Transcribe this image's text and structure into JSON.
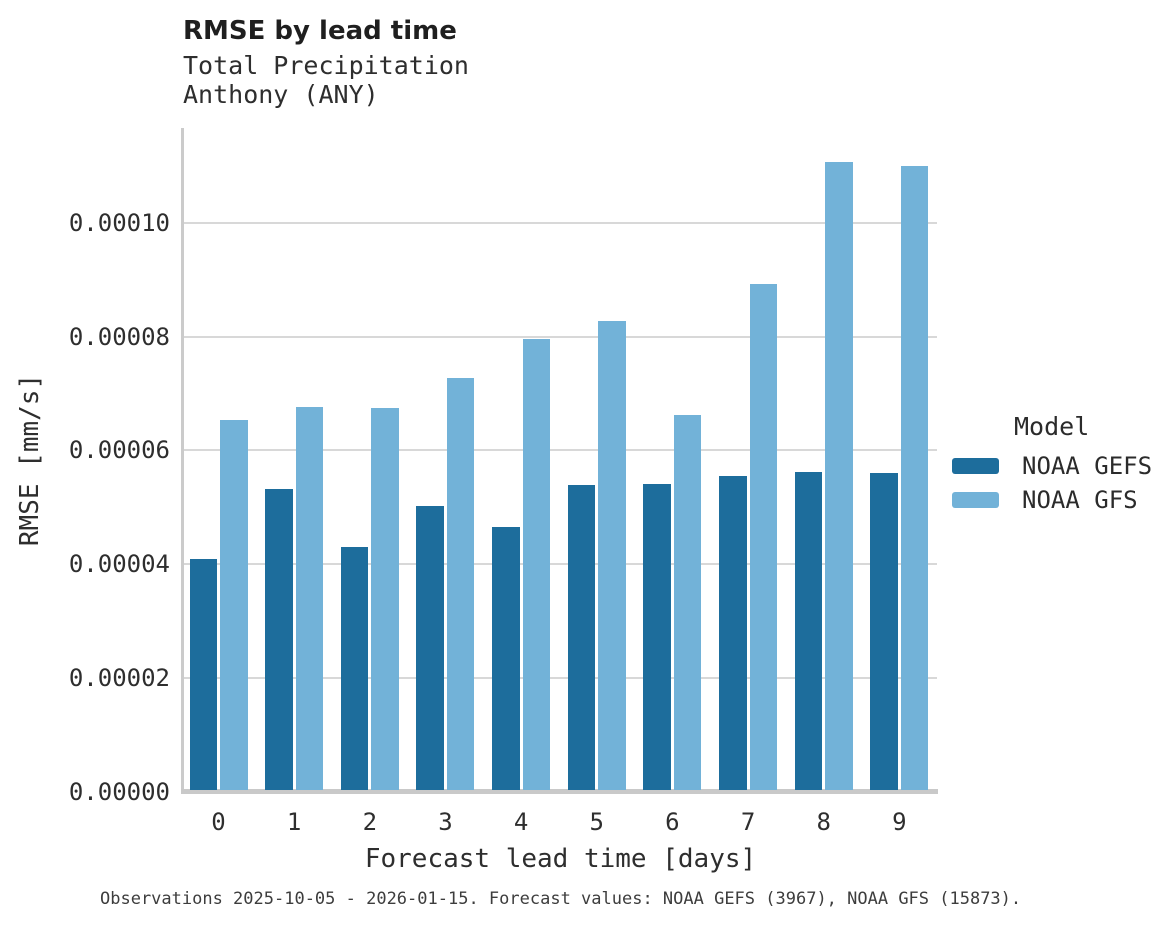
{
  "chart_data": {
    "type": "bar",
    "title": "RMSE by lead time",
    "subtitle": [
      "Total Precipitation",
      "Anthony (ANY)"
    ],
    "categories": [
      "0",
      "1",
      "2",
      "3",
      "4",
      "5",
      "6",
      "7",
      "8",
      "9"
    ],
    "series": [
      {
        "name": "NOAA GEFS",
        "color": "#1d6d9c",
        "values": [
          4.1e-05,
          5.33e-05,
          4.31e-05,
          5.02e-05,
          4.65e-05,
          5.4e-05,
          5.41e-05,
          5.56e-05,
          5.63e-05,
          5.61e-05
        ]
      },
      {
        "name": "NOAA GFS",
        "color": "#72b2d8",
        "values": [
          6.53e-05,
          6.77e-05,
          6.75e-05,
          7.28e-05,
          7.95e-05,
          8.28e-05,
          6.62e-05,
          8.93e-05,
          0.0001106,
          0.00011
        ]
      }
    ],
    "xlabel": "Forecast lead time [days]",
    "ylabel": "RMSE [mm/s]",
    "ylim": [
      0,
      0.0001163
    ],
    "yticks": [
      0,
      2e-05,
      4e-05,
      6e-05,
      8e-05,
      0.0001
    ],
    "ytick_labels": [
      "0.00000",
      "0.00002",
      "0.00004",
      "0.00006",
      "0.00008",
      "0.00010"
    ],
    "legend_title": "Model",
    "legend_position": "right",
    "grid": true,
    "background": "#ffffff",
    "grid_color": "#d8d8d8",
    "spine_color": "#c9c9c9"
  },
  "footer": {
    "note": "Observations 2025-10-05 - 2026-01-15. Forecast values: NOAA GEFS (3967), NOAA GFS (15873)."
  }
}
